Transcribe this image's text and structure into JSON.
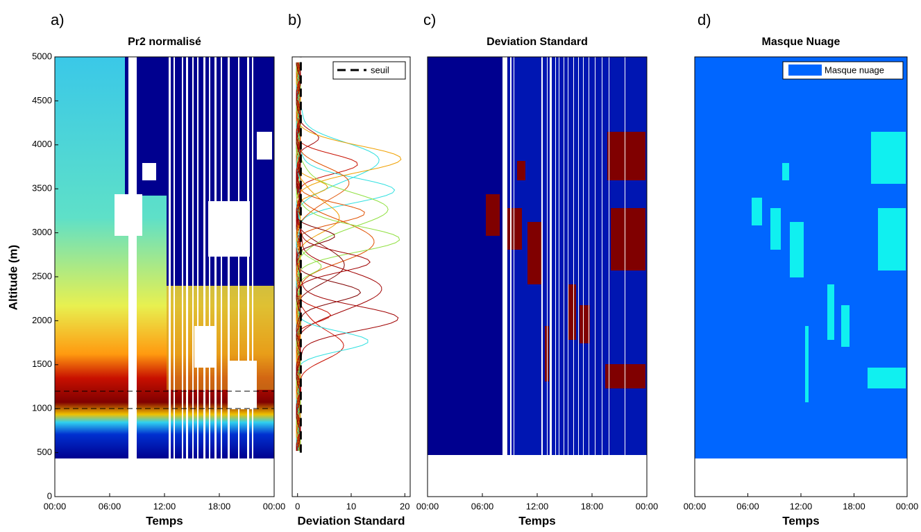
{
  "chart_data": [
    {
      "type": "heatmap",
      "panel_label": "a)",
      "title": "Pr2 normalisé",
      "x_label": "Temps",
      "y_label": "Altitude (m)",
      "xlim": [
        0,
        24
      ],
      "xticks": [
        {
          "value": 0,
          "label": "00:00"
        },
        {
          "value": 6,
          "label": "06:00"
        },
        {
          "value": 12,
          "label": "12:00"
        },
        {
          "value": 18,
          "label": "18:00"
        },
        {
          "value": 24,
          "label": "00:00"
        }
      ],
      "ylim": [
        0,
        5000
      ],
      "yticks": [
        0,
        500,
        1000,
        1500,
        2000,
        2500,
        3000,
        3500,
        4000,
        4500,
        5000
      ]
    },
    {
      "type": "line",
      "panel_label": "b)",
      "x_label": "Deviation Standard",
      "xlim": [
        -1,
        21
      ],
      "xticks": [
        0,
        10,
        20
      ],
      "ylim": [
        0,
        5000
      ],
      "series": [
        {
          "name": "seuil",
          "color": "#000000",
          "x": [
            0.6,
            0.6
          ],
          "values": [
            500,
            5000
          ]
        }
      ],
      "legend": "upper right"
    },
    {
      "type": "heatmap",
      "panel_label": "c)",
      "title": "Deviation Standard",
      "x_label": "Temps",
      "xlim": [
        0,
        24
      ],
      "xticks": [
        {
          "value": 0,
          "label": "00:00"
        },
        {
          "value": 6,
          "label": "06:00"
        },
        {
          "value": 12,
          "label": "12:00"
        },
        {
          "value": 18,
          "label": "18:00"
        },
        {
          "value": 24,
          "label": "00:00"
        }
      ],
      "ylim": [
        0,
        5000
      ]
    },
    {
      "type": "heatmap",
      "panel_label": "d)",
      "title": "Masque Nuage",
      "x_label": "Temps",
      "xlim": [
        0,
        24
      ],
      "xticks": [
        {
          "value": 0,
          "label": "00:00"
        },
        {
          "value": 6,
          "label": "06:00"
        },
        {
          "value": 12,
          "label": "12:00"
        },
        {
          "value": 18,
          "label": "18:00"
        },
        {
          "value": 24,
          "label": "00:00"
        }
      ],
      "ylim": [
        0,
        5000
      ],
      "legend_entries": [
        {
          "name": "Masque nuage",
          "color": "#0066ff"
        }
      ],
      "legend": "upper right"
    }
  ]
}
